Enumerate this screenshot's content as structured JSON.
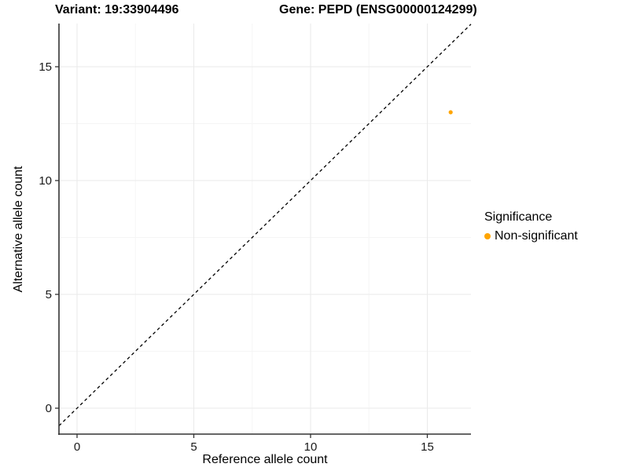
{
  "header": {
    "variant_title": "Variant: 19:33904496",
    "gene_title": "Gene: PEPD (ENSG00000124299)"
  },
  "chart_data": {
    "type": "scatter",
    "title": "Variant: 19:33904496   Gene: PEPD (ENSG00000124299)",
    "xlabel": "Reference allele count",
    "ylabel": "Alternative allele count",
    "x_ticks": [
      0,
      5,
      10,
      15
    ],
    "y_ticks": [
      0,
      5,
      10,
      15
    ],
    "x_minor_ticks": [
      2.5,
      7.5,
      12.5
    ],
    "y_minor_ticks": [
      2.5,
      7.5,
      12.5
    ],
    "xlim": [
      -0.774,
      16.869
    ],
    "ylim": [
      -1.138,
      16.897
    ],
    "grid": true,
    "points": [
      {
        "x": 16,
        "y": 13,
        "series": "Non-significant"
      }
    ],
    "reference_line": {
      "kind": "abline",
      "slope": 1,
      "intercept": 0,
      "style": "dashed",
      "color": "#000000"
    },
    "legend": {
      "title": "Significance",
      "position": "right",
      "items": [
        {
          "label": "Non-significant",
          "color": "#FFA500"
        }
      ]
    },
    "colors": {
      "point": "#FFA500",
      "grid_major": "#EAEAEA",
      "grid_minor": "#F5F5F5",
      "axis_line": "#333333",
      "tick_text": "#1A1A1A"
    }
  }
}
